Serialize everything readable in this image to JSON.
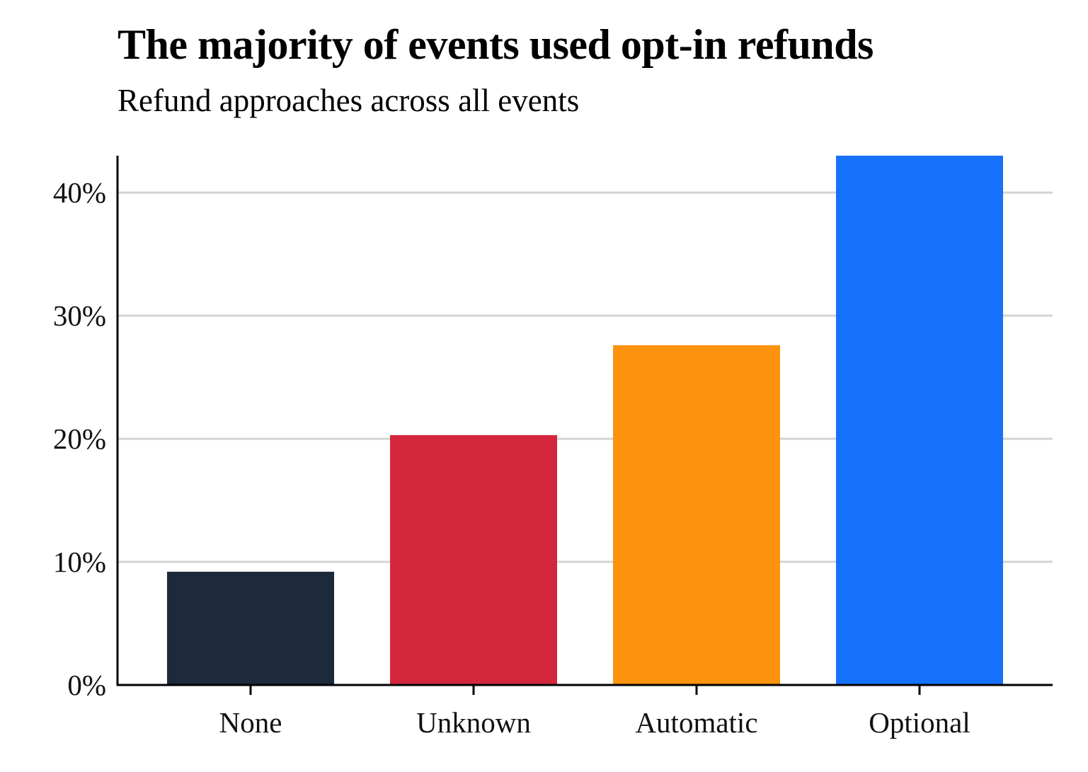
{
  "chart_data": {
    "type": "bar",
    "title": "The majority of events used opt-in refunds",
    "subtitle": "Refund approaches across all events",
    "xlabel": "",
    "ylabel": "",
    "categories": [
      "None",
      "Unknown",
      "Automatic",
      "Optional"
    ],
    "values": [
      9.2,
      20.3,
      27.6,
      43.0
    ],
    "colors": [
      "#1c2a3c",
      "#d4263d",
      "#fd930d",
      "#1671fd"
    ],
    "ylim": [
      0,
      43
    ],
    "yticks": [
      0,
      10,
      20,
      30,
      40
    ],
    "ytick_labels": [
      "0%",
      "10%",
      "20%",
      "30%",
      "40%"
    ],
    "grid": "horizontal",
    "legend": "none"
  }
}
